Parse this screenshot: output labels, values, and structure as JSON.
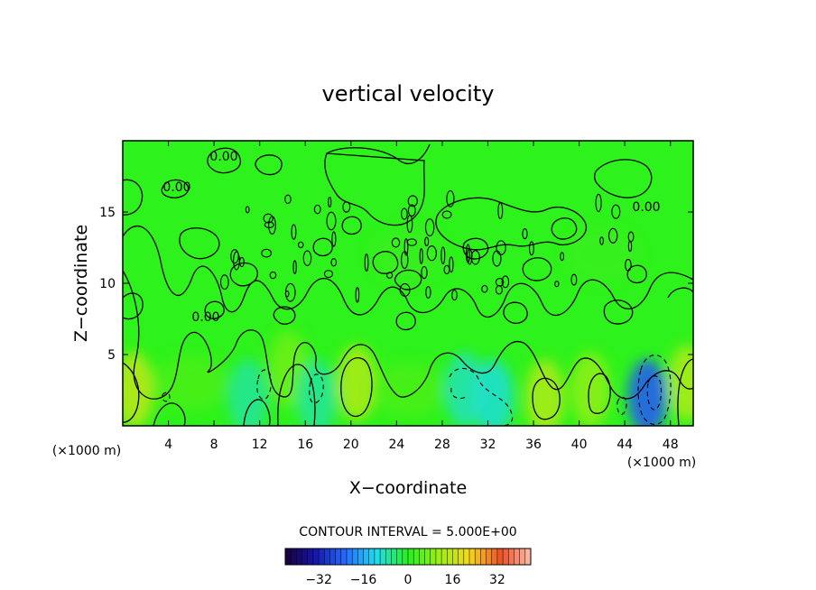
{
  "chart_data": {
    "type": "heatmap",
    "title": "vertical velocity",
    "xlabel": "X−coordinate",
    "ylabel": "Z−coordinate",
    "x_unit_label": "(×1000 m)",
    "z_unit_label": "(×1000 m)",
    "xlim": [
      0,
      50
    ],
    "ylim": [
      0,
      20
    ],
    "x_ticks": [
      4,
      8,
      12,
      16,
      20,
      24,
      28,
      32,
      36,
      40,
      44,
      48
    ],
    "x_tick_labels": [
      "4",
      "8",
      "12",
      "16",
      "20",
      "24",
      "28",
      "32",
      "36",
      "40",
      "44",
      "48"
    ],
    "y_ticks": [
      5,
      10,
      15
    ],
    "y_tick_labels": [
      "5",
      "10",
      "15"
    ],
    "contour_label": "0.00",
    "contour_interval_text": "CONTOUR INTERVAL = 5.000E+00",
    "colorbar": {
      "range": [
        -44,
        44
      ],
      "ticks": [
        -32,
        -16,
        0,
        16,
        32
      ],
      "tick_labels": [
        "−32",
        "−16",
        "0",
        "16",
        "32"
      ]
    },
    "features": [
      {
        "x": 1,
        "z": 2.5,
        "w": 9
      },
      {
        "x": 6,
        "z": 3,
        "w": 2
      },
      {
        "x": 11,
        "z": 2,
        "w": -4
      },
      {
        "x": 14.5,
        "z": 4,
        "w": 4
      },
      {
        "x": 17,
        "z": 2,
        "w": -4
      },
      {
        "x": 20.5,
        "z": 3,
        "w": 8
      },
      {
        "x": 25,
        "z": 2.5,
        "w": 2
      },
      {
        "x": 30,
        "z": 2.5,
        "w": -5
      },
      {
        "x": 32.5,
        "z": 2,
        "w": -6
      },
      {
        "x": 37,
        "z": 2,
        "w": 8
      },
      {
        "x": 41,
        "z": 2.5,
        "w": 6
      },
      {
        "x": 46,
        "z": 2,
        "w": -15
      },
      {
        "x": 49.5,
        "z": 3,
        "w": 8
      },
      {
        "x": 25,
        "z": 12,
        "w": 1
      },
      {
        "x": 42,
        "z": 12,
        "w": 1
      }
    ],
    "grid": false,
    "legend": "colorbar-bottom"
  }
}
